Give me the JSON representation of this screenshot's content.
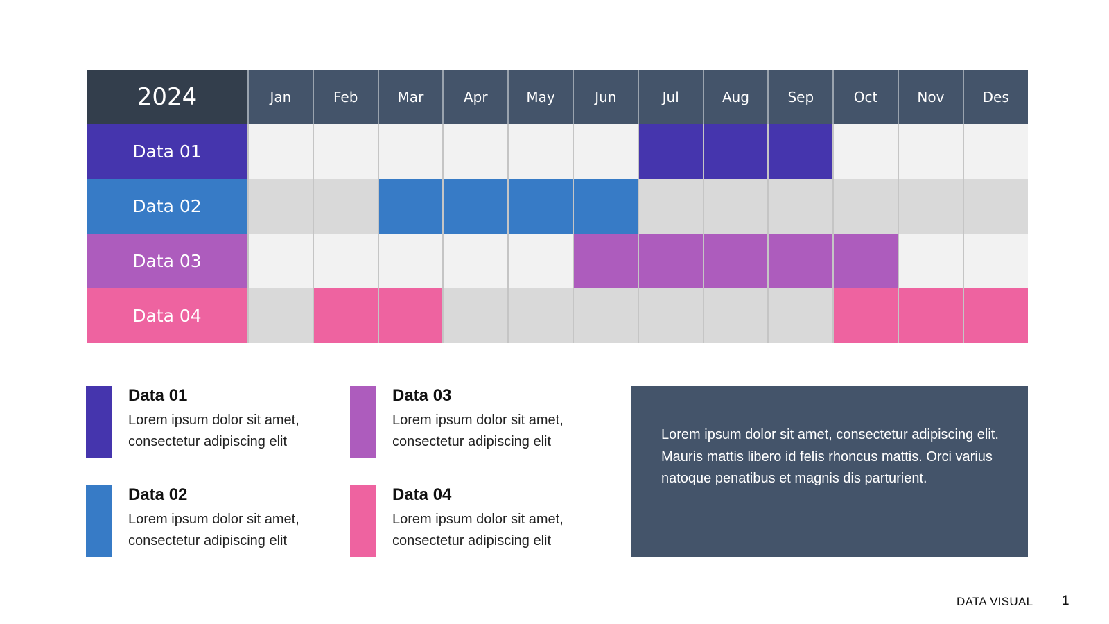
{
  "chart_data": {
    "type": "table",
    "year": "2024",
    "months": [
      "Jan",
      "Feb",
      "Mar",
      "Apr",
      "May",
      "Jun",
      "Jul",
      "Aug",
      "Sep",
      "Oct",
      "Nov",
      "Des"
    ],
    "series": [
      {
        "name": "Data 01",
        "color": "#4535ad",
        "active_months": [
          "Jul",
          "Aug",
          "Sep"
        ]
      },
      {
        "name": "Data 02",
        "color": "#377bc6",
        "active_months": [
          "Mar",
          "Apr",
          "May",
          "Jun"
        ]
      },
      {
        "name": "Data 03",
        "color": "#ad5cbd",
        "active_months": [
          "Jun",
          "Jul",
          "Aug",
          "Sep",
          "Oct"
        ]
      },
      {
        "name": "Data 04",
        "color": "#ee63a0",
        "active_months": [
          "Feb",
          "Mar",
          "Oct",
          "Nov",
          "Des"
        ]
      }
    ],
    "row_background_colors": [
      "#f2f2f2",
      "#d9d9d9"
    ]
  },
  "legend": [
    {
      "title": "Data 01",
      "desc": "Lorem ipsum dolor sit amet, consectetur adipiscing elit",
      "color": "#4535ad"
    },
    {
      "title": "Data 02",
      "desc": "Lorem ipsum dolor sit amet, consectetur adipiscing elit",
      "color": "#377bc6"
    },
    {
      "title": "Data 03",
      "desc": "Lorem ipsum dolor sit amet, consectetur adipiscing elit",
      "color": "#ad5cbd"
    },
    {
      "title": "Data 04",
      "desc": "Lorem ipsum dolor sit amet, consectetur adipiscing elit",
      "color": "#ee63a0"
    }
  ],
  "note": {
    "text": "Lorem ipsum dolor sit amet, consectetur adipiscing elit. Mauris mattis libero id felis rhoncus mattis. Orci varius natoque penatibus et magnis dis parturient."
  },
  "footer": {
    "label": "DATA VISUAL",
    "page_number": "1"
  },
  "colors": {
    "header_dark": "#333e4c",
    "header": "#44546a"
  }
}
